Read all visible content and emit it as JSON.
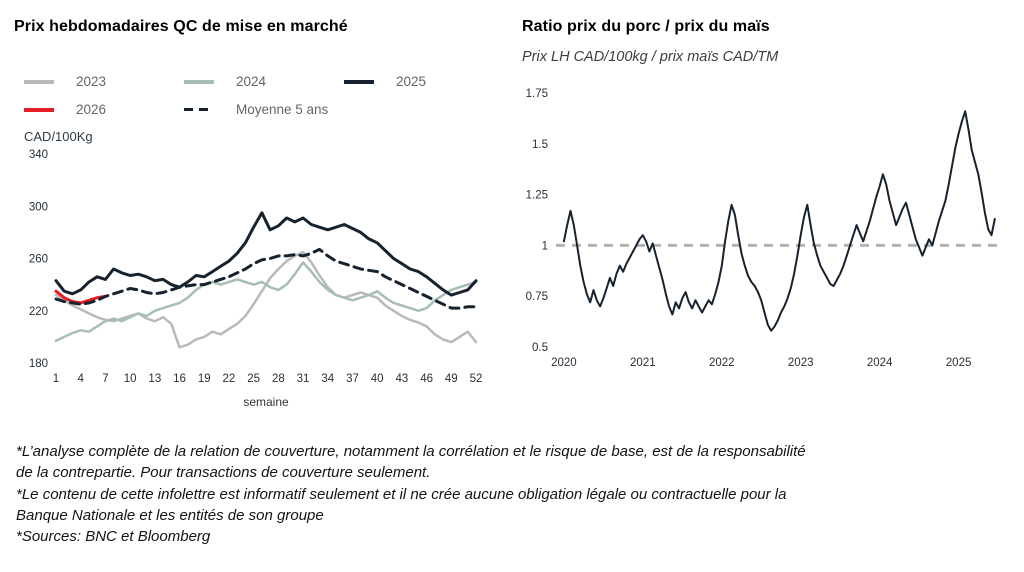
{
  "chart_data": [
    {
      "id": "weekly-price-chart",
      "type": "line",
      "title": "Prix hebdomadaires QC de mise en marché",
      "ylabel": "CAD/100Kg",
      "xlabel": "semaine",
      "grid": false,
      "legend_position": "top",
      "xlim": [
        1,
        52
      ],
      "ylim": [
        180,
        340
      ],
      "yticks": [
        180,
        220,
        260,
        300,
        340
      ],
      "xticks": [
        1,
        4,
        7,
        10,
        13,
        16,
        19,
        22,
        25,
        28,
        31,
        34,
        37,
        40,
        43,
        46,
        49,
        52
      ],
      "x": [
        1,
        2,
        3,
        4,
        5,
        6,
        7,
        8,
        9,
        10,
        11,
        12,
        13,
        14,
        15,
        16,
        17,
        18,
        19,
        20,
        21,
        22,
        23,
        24,
        25,
        26,
        27,
        28,
        29,
        30,
        31,
        32,
        33,
        34,
        35,
        36,
        37,
        38,
        39,
        40,
        41,
        42,
        43,
        44,
        45,
        46,
        47,
        48,
        49,
        50,
        51,
        52
      ],
      "series": [
        {
          "name": "2023",
          "color": "#b9b9b9",
          "width": 2.5,
          "dash": null,
          "values": [
            232,
            228,
            224,
            221,
            218,
            215,
            213,
            212,
            214,
            216,
            218,
            214,
            212,
            215,
            210,
            192,
            194,
            198,
            200,
            204,
            202,
            206,
            210,
            216,
            225,
            235,
            245,
            252,
            258,
            262,
            265,
            257,
            247,
            238,
            232,
            230,
            232,
            234,
            232,
            230,
            224,
            220,
            216,
            213,
            211,
            208,
            202,
            198,
            196,
            200,
            204,
            196
          ]
        },
        {
          "name": "2024",
          "color": "#a7beb2",
          "width": 2.5,
          "dash": null,
          "values": [
            197,
            200,
            203,
            205,
            204,
            208,
            212,
            214,
            212,
            215,
            218,
            216,
            220,
            222,
            224,
            226,
            230,
            236,
            240,
            242,
            240,
            242,
            244,
            242,
            240,
            242,
            238,
            236,
            240,
            248,
            257,
            250,
            242,
            236,
            232,
            230,
            228,
            230,
            232,
            235,
            230,
            226,
            224,
            222,
            220,
            222,
            228,
            232,
            236,
            238,
            240,
            242
          ]
        },
        {
          "name": "2025",
          "color": "#16222e",
          "width": 3,
          "dash": null,
          "values": [
            243,
            235,
            233,
            236,
            242,
            246,
            244,
            252,
            249,
            247,
            248,
            246,
            243,
            244,
            240,
            238,
            242,
            247,
            246,
            250,
            254,
            258,
            264,
            272,
            284,
            295,
            282,
            285,
            291,
            288,
            291,
            286,
            284,
            282,
            284,
            286,
            283,
            280,
            275,
            272,
            266,
            260,
            256,
            252,
            250,
            246,
            241,
            236,
            232,
            234,
            236,
            243
          ]
        },
        {
          "name": "2026",
          "color": "#e41c23",
          "width": 3,
          "dash": null,
          "values": [
            235,
            230,
            227,
            226,
            228,
            230,
            231
          ]
        },
        {
          "name": "Moyenne 5 ans",
          "color": "#16222e",
          "width": 3,
          "dash": "9,6",
          "values": [
            229,
            227,
            226,
            225,
            226,
            228,
            231,
            233,
            235,
            237,
            236,
            234,
            233,
            234,
            236,
            238,
            239,
            240,
            240,
            242,
            244,
            246,
            249,
            252,
            256,
            259,
            260,
            262,
            262,
            263,
            262,
            264,
            267,
            262,
            258,
            256,
            254,
            252,
            251,
            250,
            246,
            243,
            240,
            237,
            234,
            231,
            228,
            225,
            222,
            222,
            223,
            223
          ]
        }
      ]
    },
    {
      "id": "ratio-chart",
      "type": "line",
      "title": "Ratio prix du porc / prix du maïs",
      "subtitle": "Prix LH CAD/100kg / prix maïs CAD/TM",
      "grid": false,
      "xlim": [
        2019.9,
        2025.55
      ],
      "ylim": [
        0.5,
        1.75
      ],
      "yticks": [
        0.5,
        0.75,
        1,
        1.25,
        1.5,
        1.75
      ],
      "xticks": [
        2020,
        2021,
        2022,
        2023,
        2024,
        2025
      ],
      "reference_line": {
        "y": 1,
        "color": "#b3b3b3",
        "dash": "9,7",
        "width": 3
      },
      "series": [
        {
          "name": "Ratio porc mais",
          "color": "#16222e",
          "width": 2,
          "dash": null,
          "x0": 2020,
          "dx": 0.041667,
          "values": [
            1.02,
            1.1,
            1.17,
            1.1,
            1.0,
            0.9,
            0.82,
            0.76,
            0.72,
            0.78,
            0.73,
            0.7,
            0.74,
            0.79,
            0.84,
            0.8,
            0.86,
            0.9,
            0.87,
            0.91,
            0.94,
            0.97,
            1.0,
            1.03,
            1.05,
            1.02,
            0.97,
            1.01,
            0.95,
            0.89,
            0.83,
            0.76,
            0.7,
            0.66,
            0.72,
            0.69,
            0.74,
            0.77,
            0.72,
            0.69,
            0.73,
            0.7,
            0.67,
            0.7,
            0.73,
            0.71,
            0.76,
            0.82,
            0.9,
            1.02,
            1.12,
            1.2,
            1.15,
            1.05,
            0.96,
            0.9,
            0.85,
            0.82,
            0.8,
            0.77,
            0.73,
            0.67,
            0.61,
            0.58,
            0.6,
            0.63,
            0.67,
            0.7,
            0.74,
            0.79,
            0.86,
            0.95,
            1.05,
            1.14,
            1.2,
            1.1,
            1.01,
            0.95,
            0.9,
            0.87,
            0.84,
            0.81,
            0.8,
            0.83,
            0.86,
            0.9,
            0.95,
            1.0,
            1.05,
            1.1,
            1.06,
            1.02,
            1.07,
            1.12,
            1.18,
            1.24,
            1.29,
            1.35,
            1.3,
            1.22,
            1.16,
            1.1,
            1.14,
            1.18,
            1.21,
            1.15,
            1.09,
            1.03,
            0.99,
            0.95,
            0.99,
            1.03,
            1.0,
            1.06,
            1.12,
            1.17,
            1.22,
            1.3,
            1.39,
            1.48,
            1.55,
            1.61,
            1.66,
            1.57,
            1.47,
            1.41,
            1.35,
            1.26,
            1.16,
            1.08,
            1.05,
            1.13
          ]
        }
      ]
    }
  ],
  "footer": {
    "lines": [
      "*L’analyse complète de la relation de couverture, notamment la corrélation et le risque de base, est de la responsabilité",
      "de la contrepartie. Pour transactions de couverture seulement.",
      "*Le contenu de cette infolettre est informatif seulement et il ne crée aucune obligation légale ou contractuelle pour la",
      "Banque Nationale et les entités de son groupe",
      "*Sources: BNC et Bloomberg"
    ]
  }
}
